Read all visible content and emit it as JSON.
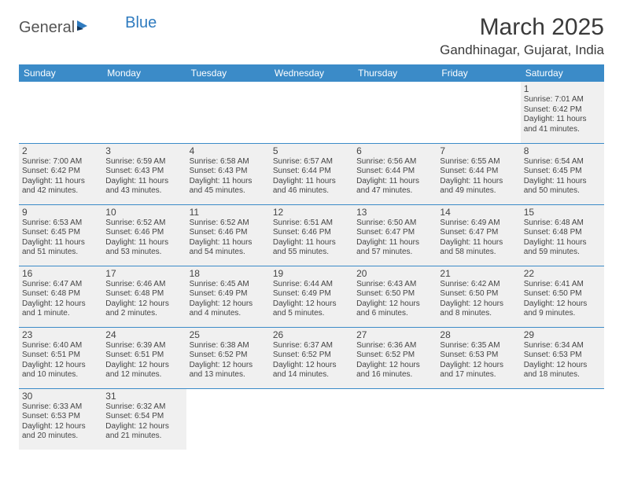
{
  "logo": {
    "part1": "General",
    "part2": "Blue"
  },
  "title": "March 2025",
  "location": "Gandhinagar, Gujarat, India",
  "colors": {
    "header_bg": "#3b8bc8",
    "header_fg": "#ffffff",
    "cell_bg": "#f0f0f0",
    "border": "#3b8bc8",
    "text": "#444444"
  },
  "weekdays": [
    "Sunday",
    "Monday",
    "Tuesday",
    "Wednesday",
    "Thursday",
    "Friday",
    "Saturday"
  ],
  "firstDayIndex": 6,
  "daysInMonth": 31,
  "days": {
    "1": {
      "sunrise": "7:01 AM",
      "sunset": "6:42 PM",
      "daylight": "11 hours and 41 minutes."
    },
    "2": {
      "sunrise": "7:00 AM",
      "sunset": "6:42 PM",
      "daylight": "11 hours and 42 minutes."
    },
    "3": {
      "sunrise": "6:59 AM",
      "sunset": "6:43 PM",
      "daylight": "11 hours and 43 minutes."
    },
    "4": {
      "sunrise": "6:58 AM",
      "sunset": "6:43 PM",
      "daylight": "11 hours and 45 minutes."
    },
    "5": {
      "sunrise": "6:57 AM",
      "sunset": "6:44 PM",
      "daylight": "11 hours and 46 minutes."
    },
    "6": {
      "sunrise": "6:56 AM",
      "sunset": "6:44 PM",
      "daylight": "11 hours and 47 minutes."
    },
    "7": {
      "sunrise": "6:55 AM",
      "sunset": "6:44 PM",
      "daylight": "11 hours and 49 minutes."
    },
    "8": {
      "sunrise": "6:54 AM",
      "sunset": "6:45 PM",
      "daylight": "11 hours and 50 minutes."
    },
    "9": {
      "sunrise": "6:53 AM",
      "sunset": "6:45 PM",
      "daylight": "11 hours and 51 minutes."
    },
    "10": {
      "sunrise": "6:52 AM",
      "sunset": "6:46 PM",
      "daylight": "11 hours and 53 minutes."
    },
    "11": {
      "sunrise": "6:52 AM",
      "sunset": "6:46 PM",
      "daylight": "11 hours and 54 minutes."
    },
    "12": {
      "sunrise": "6:51 AM",
      "sunset": "6:46 PM",
      "daylight": "11 hours and 55 minutes."
    },
    "13": {
      "sunrise": "6:50 AM",
      "sunset": "6:47 PM",
      "daylight": "11 hours and 57 minutes."
    },
    "14": {
      "sunrise": "6:49 AM",
      "sunset": "6:47 PM",
      "daylight": "11 hours and 58 minutes."
    },
    "15": {
      "sunrise": "6:48 AM",
      "sunset": "6:48 PM",
      "daylight": "11 hours and 59 minutes."
    },
    "16": {
      "sunrise": "6:47 AM",
      "sunset": "6:48 PM",
      "daylight": "12 hours and 1 minute."
    },
    "17": {
      "sunrise": "6:46 AM",
      "sunset": "6:48 PM",
      "daylight": "12 hours and 2 minutes."
    },
    "18": {
      "sunrise": "6:45 AM",
      "sunset": "6:49 PM",
      "daylight": "12 hours and 4 minutes."
    },
    "19": {
      "sunrise": "6:44 AM",
      "sunset": "6:49 PM",
      "daylight": "12 hours and 5 minutes."
    },
    "20": {
      "sunrise": "6:43 AM",
      "sunset": "6:50 PM",
      "daylight": "12 hours and 6 minutes."
    },
    "21": {
      "sunrise": "6:42 AM",
      "sunset": "6:50 PM",
      "daylight": "12 hours and 8 minutes."
    },
    "22": {
      "sunrise": "6:41 AM",
      "sunset": "6:50 PM",
      "daylight": "12 hours and 9 minutes."
    },
    "23": {
      "sunrise": "6:40 AM",
      "sunset": "6:51 PM",
      "daylight": "12 hours and 10 minutes."
    },
    "24": {
      "sunrise": "6:39 AM",
      "sunset": "6:51 PM",
      "daylight": "12 hours and 12 minutes."
    },
    "25": {
      "sunrise": "6:38 AM",
      "sunset": "6:52 PM",
      "daylight": "12 hours and 13 minutes."
    },
    "26": {
      "sunrise": "6:37 AM",
      "sunset": "6:52 PM",
      "daylight": "12 hours and 14 minutes."
    },
    "27": {
      "sunrise": "6:36 AM",
      "sunset": "6:52 PM",
      "daylight": "12 hours and 16 minutes."
    },
    "28": {
      "sunrise": "6:35 AM",
      "sunset": "6:53 PM",
      "daylight": "12 hours and 17 minutes."
    },
    "29": {
      "sunrise": "6:34 AM",
      "sunset": "6:53 PM",
      "daylight": "12 hours and 18 minutes."
    },
    "30": {
      "sunrise": "6:33 AM",
      "sunset": "6:53 PM",
      "daylight": "12 hours and 20 minutes."
    },
    "31": {
      "sunrise": "6:32 AM",
      "sunset": "6:54 PM",
      "daylight": "12 hours and 21 minutes."
    }
  }
}
